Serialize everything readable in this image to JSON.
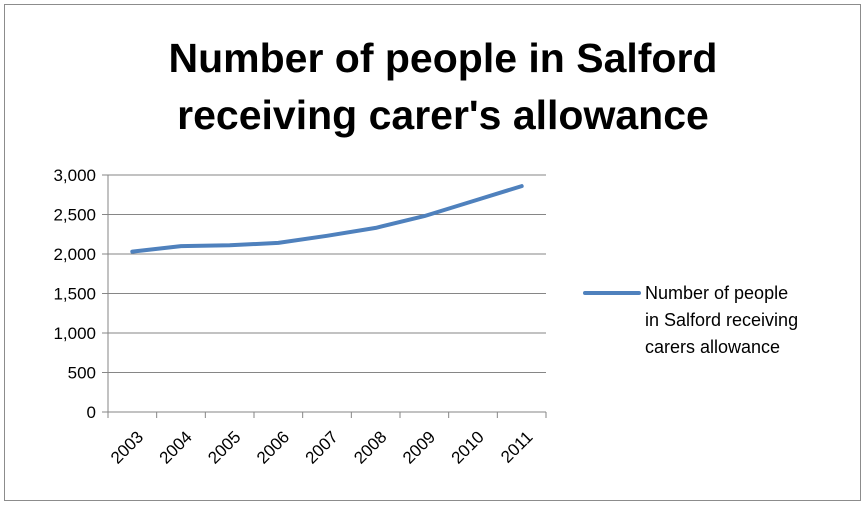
{
  "chart_data": {
    "type": "line",
    "title": "Number of people in Salford receiving carer's allowance",
    "title_lines": [
      "Number of people in Salford",
      "receiving carer's allowance"
    ],
    "xlabel": "",
    "ylabel": "",
    "categories": [
      "2003",
      "2004",
      "2005",
      "2006",
      "2007",
      "2008",
      "2009",
      "2010",
      "2011"
    ],
    "series": [
      {
        "name": "Number of people in Salford receiving carers allowance",
        "name_lines": [
          "Number of people",
          "in Salford receiving",
          "carers allowance"
        ],
        "values": [
          2030,
          2100,
          2110,
          2140,
          2230,
          2330,
          2480,
          2670,
          2860
        ],
        "color": "#4f81bd"
      }
    ],
    "ylim": [
      0,
      3000
    ],
    "yticks": [
      0,
      500,
      1000,
      1500,
      2000,
      2500,
      3000
    ],
    "ytick_labels": [
      "0",
      "500",
      "1,000",
      "1,500",
      "2,000",
      "2,500",
      "3,000"
    ],
    "grid": true,
    "legend_position": "right"
  }
}
